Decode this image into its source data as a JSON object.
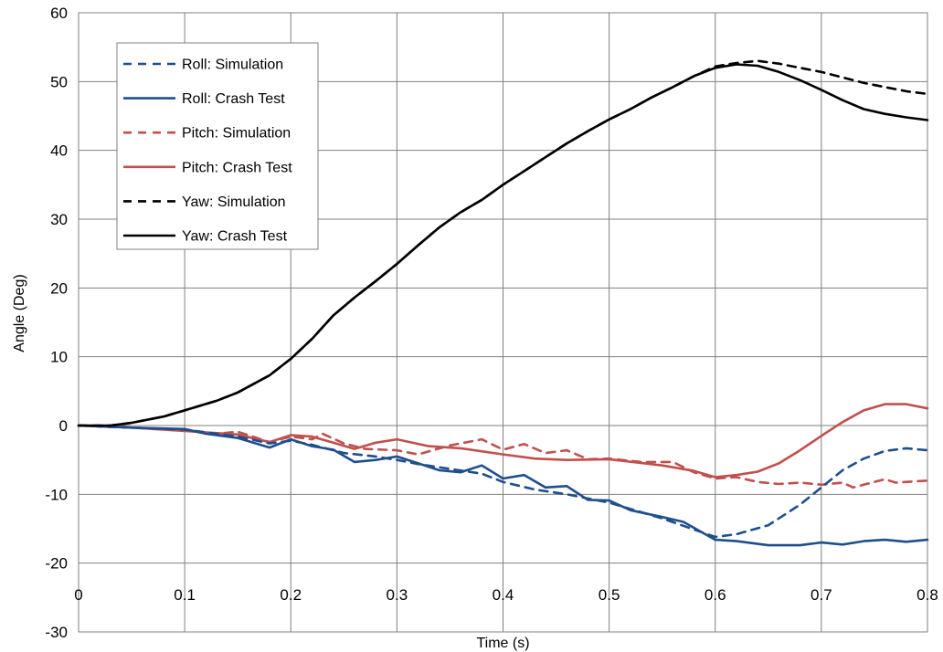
{
  "chart_data": {
    "type": "line",
    "title": "",
    "xlabel": "Time (s)",
    "ylabel": "Angle (Deg)",
    "xlim": [
      0,
      0.8
    ],
    "ylim": [
      -30,
      60
    ],
    "x_ticks": [
      0,
      0.1,
      0.2,
      0.3,
      0.4,
      0.5,
      0.6,
      0.7,
      0.8
    ],
    "y_ticks": [
      -30,
      -20,
      -10,
      0,
      10,
      20,
      30,
      40,
      50,
      60
    ],
    "x_tick_labels": [
      "0",
      "0.1",
      "0.2",
      "0.3",
      "0.4",
      "0.5",
      "0.6",
      "0.7",
      "0.8"
    ],
    "y_tick_labels": [
      "-30",
      "-20",
      "-10",
      "0",
      "10",
      "20",
      "30",
      "40",
      "50",
      "60"
    ],
    "grid": true,
    "legend": "top-left",
    "series": [
      {
        "name": "Roll: Simulation",
        "color": "#1f4e8c",
        "dash": "dashed",
        "points": [
          [
            0,
            0
          ],
          [
            0.05,
            -0.3
          ],
          [
            0.1,
            -0.6
          ],
          [
            0.12,
            -1.0
          ],
          [
            0.15,
            -1.6
          ],
          [
            0.18,
            -2.6
          ],
          [
            0.2,
            -2.2
          ],
          [
            0.22,
            -2.8
          ],
          [
            0.25,
            -4.0
          ],
          [
            0.28,
            -4.5
          ],
          [
            0.3,
            -5.0
          ],
          [
            0.32,
            -5.6
          ],
          [
            0.35,
            -6.3
          ],
          [
            0.38,
            -7.0
          ],
          [
            0.4,
            -8.2
          ],
          [
            0.43,
            -9.3
          ],
          [
            0.46,
            -10.0
          ],
          [
            0.5,
            -11.2
          ],
          [
            0.55,
            -13.5
          ],
          [
            0.6,
            -16.2
          ],
          [
            0.62,
            -15.8
          ],
          [
            0.65,
            -14.5
          ],
          [
            0.68,
            -11.5
          ],
          [
            0.7,
            -9.0
          ],
          [
            0.72,
            -6.5
          ],
          [
            0.74,
            -4.8
          ],
          [
            0.76,
            -3.7
          ],
          [
            0.78,
            -3.3
          ],
          [
            0.8,
            -3.6
          ]
        ]
      },
      {
        "name": "Roll: Crash Test",
        "color": "#1f4e8c",
        "dash": "solid",
        "points": [
          [
            0,
            0
          ],
          [
            0.05,
            -0.3
          ],
          [
            0.1,
            -0.5
          ],
          [
            0.12,
            -1.2
          ],
          [
            0.15,
            -1.8
          ],
          [
            0.18,
            -3.2
          ],
          [
            0.2,
            -2.0
          ],
          [
            0.22,
            -3.0
          ],
          [
            0.24,
            -3.5
          ],
          [
            0.26,
            -5.3
          ],
          [
            0.28,
            -5.0
          ],
          [
            0.3,
            -4.5
          ],
          [
            0.32,
            -5.5
          ],
          [
            0.34,
            -6.5
          ],
          [
            0.36,
            -6.8
          ],
          [
            0.38,
            -5.8
          ],
          [
            0.4,
            -7.7
          ],
          [
            0.42,
            -7.2
          ],
          [
            0.44,
            -9.0
          ],
          [
            0.46,
            -8.8
          ],
          [
            0.48,
            -10.8
          ],
          [
            0.5,
            -10.9
          ],
          [
            0.52,
            -12.3
          ],
          [
            0.55,
            -13.3
          ],
          [
            0.57,
            -14.0
          ],
          [
            0.6,
            -16.6
          ],
          [
            0.62,
            -16.8
          ],
          [
            0.65,
            -17.4
          ],
          [
            0.68,
            -17.4
          ],
          [
            0.7,
            -17.0
          ],
          [
            0.72,
            -17.3
          ],
          [
            0.74,
            -16.8
          ],
          [
            0.76,
            -16.6
          ],
          [
            0.78,
            -16.9
          ],
          [
            0.8,
            -16.6
          ]
        ]
      },
      {
        "name": "Pitch: Simulation",
        "color": "#c0504d",
        "dash": "dashed",
        "points": [
          [
            0,
            0
          ],
          [
            0.05,
            -0.3
          ],
          [
            0.1,
            -0.6
          ],
          [
            0.13,
            -1.2
          ],
          [
            0.15,
            -0.9
          ],
          [
            0.18,
            -2.4
          ],
          [
            0.2,
            -1.6
          ],
          [
            0.22,
            -2.0
          ],
          [
            0.23,
            -1.2
          ],
          [
            0.25,
            -2.6
          ],
          [
            0.27,
            -3.4
          ],
          [
            0.3,
            -3.6
          ],
          [
            0.32,
            -4.2
          ],
          [
            0.35,
            -2.9
          ],
          [
            0.38,
            -2.0
          ],
          [
            0.4,
            -3.5
          ],
          [
            0.42,
            -2.7
          ],
          [
            0.44,
            -4.0
          ],
          [
            0.46,
            -3.6
          ],
          [
            0.48,
            -4.9
          ],
          [
            0.5,
            -4.8
          ],
          [
            0.53,
            -5.3
          ],
          [
            0.56,
            -5.3
          ],
          [
            0.58,
            -6.8
          ],
          [
            0.6,
            -7.7
          ],
          [
            0.62,
            -7.5
          ],
          [
            0.64,
            -8.2
          ],
          [
            0.66,
            -8.5
          ],
          [
            0.68,
            -8.3
          ],
          [
            0.7,
            -8.6
          ],
          [
            0.72,
            -8.3
          ],
          [
            0.73,
            -9.0
          ],
          [
            0.75,
            -8.2
          ],
          [
            0.76,
            -7.8
          ],
          [
            0.77,
            -8.3
          ],
          [
            0.8,
            -8.0
          ]
        ]
      },
      {
        "name": "Pitch: Crash Test",
        "color": "#c0504d",
        "dash": "solid",
        "points": [
          [
            0,
            0
          ],
          [
            0.05,
            -0.3
          ],
          [
            0.1,
            -0.8
          ],
          [
            0.15,
            -1.3
          ],
          [
            0.18,
            -2.4
          ],
          [
            0.2,
            -1.4
          ],
          [
            0.22,
            -1.6
          ],
          [
            0.24,
            -2.5
          ],
          [
            0.26,
            -3.4
          ],
          [
            0.28,
            -2.5
          ],
          [
            0.3,
            -2.0
          ],
          [
            0.33,
            -3.0
          ],
          [
            0.36,
            -3.3
          ],
          [
            0.4,
            -4.2
          ],
          [
            0.43,
            -4.8
          ],
          [
            0.46,
            -5.0
          ],
          [
            0.5,
            -4.9
          ],
          [
            0.55,
            -5.8
          ],
          [
            0.58,
            -6.6
          ],
          [
            0.6,
            -7.5
          ],
          [
            0.62,
            -7.2
          ],
          [
            0.64,
            -6.7
          ],
          [
            0.66,
            -5.5
          ],
          [
            0.68,
            -3.6
          ],
          [
            0.7,
            -1.5
          ],
          [
            0.72,
            0.5
          ],
          [
            0.74,
            2.2
          ],
          [
            0.76,
            3.1
          ],
          [
            0.78,
            3.1
          ],
          [
            0.8,
            2.5
          ]
        ]
      },
      {
        "name": "Yaw: Simulation",
        "color": "#000000",
        "dash": "dashed",
        "points": [
          [
            0,
            0
          ],
          [
            0.03,
            0
          ],
          [
            0.05,
            0.4
          ],
          [
            0.08,
            1.3
          ],
          [
            0.1,
            2.2
          ],
          [
            0.13,
            3.6
          ],
          [
            0.15,
            4.8
          ],
          [
            0.18,
            7.3
          ],
          [
            0.2,
            9.7
          ],
          [
            0.22,
            12.6
          ],
          [
            0.24,
            16.0
          ],
          [
            0.26,
            18.6
          ],
          [
            0.28,
            21.0
          ],
          [
            0.3,
            23.5
          ],
          [
            0.32,
            26.2
          ],
          [
            0.34,
            28.8
          ],
          [
            0.36,
            31.0
          ],
          [
            0.38,
            32.8
          ],
          [
            0.4,
            35.0
          ],
          [
            0.42,
            37.0
          ],
          [
            0.44,
            39.0
          ],
          [
            0.46,
            41.0
          ],
          [
            0.48,
            42.8
          ],
          [
            0.5,
            44.5
          ],
          [
            0.52,
            46.0
          ],
          [
            0.54,
            47.7
          ],
          [
            0.56,
            49.2
          ],
          [
            0.58,
            50.8
          ],
          [
            0.6,
            52.2
          ],
          [
            0.62,
            52.7
          ],
          [
            0.64,
            53.0
          ],
          [
            0.66,
            52.6
          ],
          [
            0.68,
            52.0
          ],
          [
            0.7,
            51.4
          ],
          [
            0.72,
            50.6
          ],
          [
            0.74,
            49.8
          ],
          [
            0.76,
            49.2
          ],
          [
            0.78,
            48.6
          ],
          [
            0.8,
            48.2
          ]
        ]
      },
      {
        "name": "Yaw: Crash Test",
        "color": "#000000",
        "dash": "solid",
        "points": [
          [
            0,
            0
          ],
          [
            0.03,
            0
          ],
          [
            0.05,
            0.4
          ],
          [
            0.08,
            1.3
          ],
          [
            0.1,
            2.2
          ],
          [
            0.13,
            3.6
          ],
          [
            0.15,
            4.8
          ],
          [
            0.18,
            7.3
          ],
          [
            0.2,
            9.7
          ],
          [
            0.22,
            12.6
          ],
          [
            0.24,
            16.0
          ],
          [
            0.26,
            18.6
          ],
          [
            0.28,
            21.0
          ],
          [
            0.3,
            23.5
          ],
          [
            0.32,
            26.2
          ],
          [
            0.34,
            28.8
          ],
          [
            0.36,
            31.0
          ],
          [
            0.38,
            32.8
          ],
          [
            0.4,
            35.0
          ],
          [
            0.42,
            37.0
          ],
          [
            0.44,
            39.0
          ],
          [
            0.46,
            41.0
          ],
          [
            0.48,
            42.8
          ],
          [
            0.5,
            44.5
          ],
          [
            0.52,
            46.0
          ],
          [
            0.54,
            47.7
          ],
          [
            0.56,
            49.2
          ],
          [
            0.58,
            50.8
          ],
          [
            0.6,
            52.0
          ],
          [
            0.62,
            52.5
          ],
          [
            0.64,
            52.3
          ],
          [
            0.66,
            51.4
          ],
          [
            0.68,
            50.2
          ],
          [
            0.7,
            48.8
          ],
          [
            0.72,
            47.3
          ],
          [
            0.74,
            46.0
          ],
          [
            0.76,
            45.3
          ],
          [
            0.78,
            44.8
          ],
          [
            0.8,
            44.4
          ]
        ]
      }
    ]
  }
}
